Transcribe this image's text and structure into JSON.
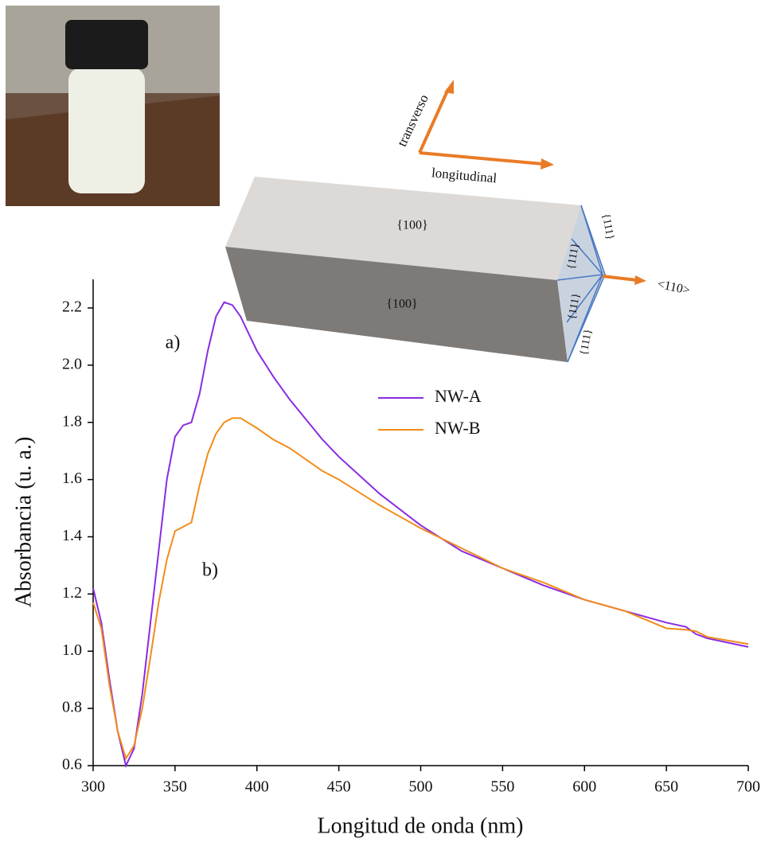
{
  "chart_data": {
    "type": "line",
    "xlabel": "Longitud de onda (nm)",
    "ylabel": "Absorbancia (u. a.)",
    "x": [
      300,
      305,
      310,
      315,
      320,
      325,
      330,
      335,
      340,
      345,
      350,
      355,
      360,
      365,
      370,
      375,
      380,
      385,
      390,
      400,
      410,
      420,
      430,
      440,
      450,
      475,
      500,
      525,
      550,
      575,
      600,
      625,
      650,
      662,
      668,
      675,
      700
    ],
    "series": [
      {
        "name": "NW-A",
        "color": "#8a2be2",
        "values": [
          1.22,
          1.1,
          0.9,
          0.72,
          0.6,
          0.66,
          0.85,
          1.1,
          1.35,
          1.6,
          1.75,
          1.79,
          1.8,
          1.9,
          2.05,
          2.17,
          2.22,
          2.21,
          2.17,
          2.05,
          1.96,
          1.88,
          1.81,
          1.74,
          1.68,
          1.55,
          1.44,
          1.35,
          1.29,
          1.23,
          1.18,
          1.14,
          1.1,
          1.085,
          1.06,
          1.045,
          1.015
        ]
      },
      {
        "name": "NW-B",
        "color": "#f28c1a",
        "values": [
          1.17,
          1.08,
          0.88,
          0.72,
          0.625,
          0.67,
          0.8,
          0.98,
          1.17,
          1.32,
          1.42,
          1.435,
          1.45,
          1.58,
          1.69,
          1.76,
          1.8,
          1.815,
          1.815,
          1.78,
          1.74,
          1.71,
          1.67,
          1.63,
          1.6,
          1.51,
          1.43,
          1.36,
          1.29,
          1.24,
          1.18,
          1.14,
          1.08,
          1.075,
          1.07,
          1.05,
          1.025
        ]
      }
    ],
    "xlim": [
      300,
      700
    ],
    "xticks": [
      300,
      350,
      400,
      450,
      500,
      550,
      600,
      650,
      700
    ],
    "ylim": [
      0.6,
      2.3
    ],
    "yticks": [
      0.6,
      0.8,
      {
        "value": 1,
        "label": "1.0"
      },
      1.2,
      1.4,
      1.6,
      1.8,
      {
        "value": 2,
        "label": "2.0"
      },
      2.2
    ],
    "annotations": [
      "a)",
      "b)"
    ],
    "diagram_labels": {
      "transverse": "transverso",
      "longitudinal": "longitudinal",
      "top_face": "{100}",
      "front_face": "{100}",
      "end_faces": [
        "{111}",
        "{111}",
        "{111}",
        "{111}"
      ],
      "direction": "<110>"
    }
  }
}
